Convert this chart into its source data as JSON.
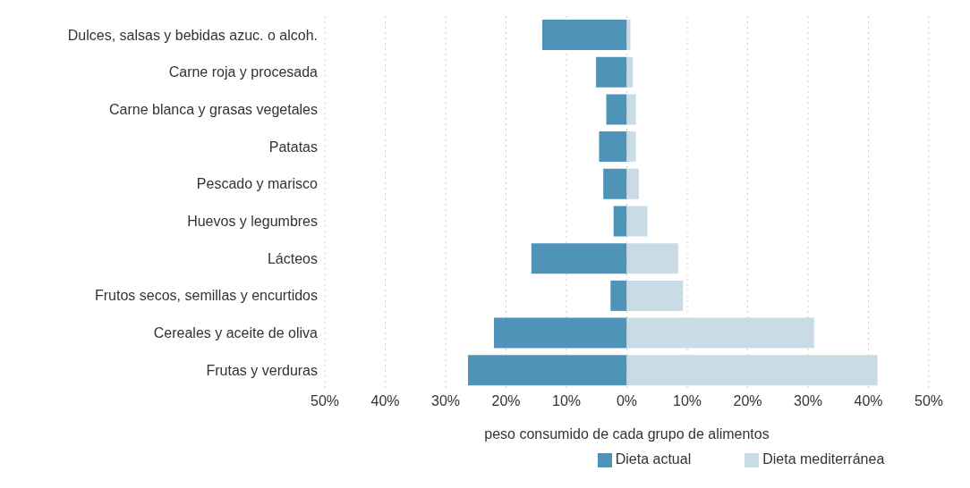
{
  "chart_data": {
    "type": "bar",
    "orientation": "horizontal",
    "stacked": true,
    "categories": [
      "Dulces, salsas y bebidas azuc. o alcoh.",
      "Carne roja y procesada",
      "Carne blanca y grasas vegetales",
      "Patatas",
      "Pescado y marisco",
      "Huevos y legumbres",
      "Lácteos",
      "Frutos secos, semillas y encurtidos",
      "Cereales y aceite de oliva",
      "Frutas y verduras"
    ],
    "series": [
      {
        "name": "Dieta actual",
        "color": "#4f94b8",
        "values": [
          -14,
          -5.1,
          -3.4,
          -4.6,
          -3.9,
          -2.2,
          -15.8,
          -2.7,
          -22,
          -26.3
        ]
      },
      {
        "name": "Dieta mediterránea",
        "color": "#c9dbe4",
        "values": [
          0.6,
          1,
          1.5,
          1.5,
          2,
          3.4,
          8.5,
          9.3,
          31,
          41.5
        ]
      }
    ],
    "xlim": [
      -50,
      50
    ],
    "xticks": [
      {
        "value": -50,
        "label": "50%"
      },
      {
        "value": -40,
        "label": "40%"
      },
      {
        "value": -30,
        "label": "30%"
      },
      {
        "value": -20,
        "label": "20%"
      },
      {
        "value": -10,
        "label": "10%"
      },
      {
        "value": 0,
        "label": "0%"
      },
      {
        "value": 10,
        "label": "10%"
      },
      {
        "value": 20,
        "label": "20%"
      },
      {
        "value": 30,
        "label": "30%"
      },
      {
        "value": 40,
        "label": "40%"
      },
      {
        "value": 50,
        "label": "50%"
      }
    ],
    "xlabel": "peso consumido de cada grupo de alimentos",
    "grid": "x",
    "legend": "bottom"
  }
}
